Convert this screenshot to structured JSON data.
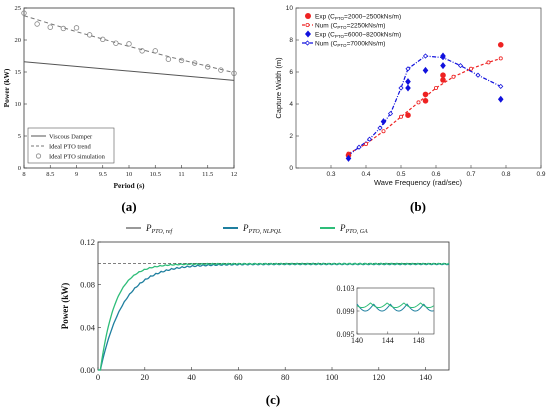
{
  "chart_data": [
    {
      "id": "a",
      "type": "line",
      "caption": "(a)",
      "xlabel": "Period (s)",
      "ylabel": "Power (kW)",
      "xlim": [
        8,
        12
      ],
      "ylim": [
        0,
        25
      ],
      "xticks": [
        "8",
        "8.5",
        "9",
        "9.5",
        "10",
        "10.5",
        "11",
        "11.5",
        "12"
      ],
      "yticks": [
        "0",
        "5",
        "10",
        "15",
        "20",
        "25"
      ],
      "legend_position": "bottom-left",
      "series": [
        {
          "name": "Viscous Damper",
          "style": "solid",
          "color": "#555555",
          "x": [
            8,
            12
          ],
          "y": [
            16.6,
            13.7
          ]
        },
        {
          "name": "Ideal PTO trend",
          "style": "dashed",
          "color": "#777777",
          "x": [
            8,
            9,
            10,
            11,
            12
          ],
          "y": [
            23.8,
            21.3,
            19.0,
            16.9,
            14.9
          ]
        },
        {
          "name": "Ideal PTO simulation",
          "style": "circle",
          "color": "#888888",
          "x": [
            8,
            8.25,
            8.5,
            8.75,
            9,
            9.25,
            9.5,
            9.75,
            10,
            10.25,
            10.5,
            10.75,
            11,
            11.25,
            11.5,
            11.75,
            12
          ],
          "y": [
            24.2,
            22.5,
            22.0,
            21.8,
            21.9,
            20.8,
            20.1,
            19.5,
            19.4,
            18.3,
            18.3,
            17.0,
            16.8,
            16.4,
            15.8,
            15.3,
            14.8
          ]
        }
      ]
    },
    {
      "id": "b",
      "type": "scatter",
      "caption": "(b)",
      "xlabel": "Wave Frequency (rad/sec)",
      "ylabel": "Capture Width (m)",
      "xlim": [
        0.2,
        0.9
      ],
      "ylim": [
        0,
        10
      ],
      "xticks": [
        "0.3",
        "0.4",
        "0.5",
        "0.6",
        "0.7",
        "0.8",
        "0.9"
      ],
      "yticks": [
        "0",
        "2",
        "4",
        "6",
        "8",
        "10"
      ],
      "legend_position": "top-left",
      "legend": {
        "exp1_sub": "PTO",
        "exp1_pre": "Exp (C",
        "exp1_post": "=2000~2500kNs/m)",
        "num1_pre": "Num (C",
        "num1_post": "=2250kNs/m)",
        "exp2_pre": "Exp (C",
        "exp2_post": "=6000~8200kNs/m)",
        "num2_pre": "Num (C",
        "num2_post": "=7000kNs/m)"
      },
      "series": [
        {
          "name": "exp1",
          "style": "circle",
          "color": "#ee2222",
          "x": [
            0.35,
            0.52,
            0.57,
            0.62,
            0.785,
            0.57,
            0.62
          ],
          "y": [
            0.8,
            3.3,
            4.6,
            5.8,
            7.7,
            4.2,
            5.5
          ]
        },
        {
          "name": "num1",
          "style": "dashed",
          "color": "#ee2222",
          "x": [
            0.35,
            0.4,
            0.45,
            0.5,
            0.55,
            0.6,
            0.65,
            0.7,
            0.75,
            0.785
          ],
          "y": [
            0.9,
            1.5,
            2.3,
            3.2,
            4.1,
            5.0,
            5.7,
            6.2,
            6.6,
            6.85
          ]
        },
        {
          "name": "exp2",
          "style": "diamond",
          "color": "#1111dd",
          "x": [
            0.35,
            0.45,
            0.52,
            0.52,
            0.57,
            0.62,
            0.62,
            0.785
          ],
          "y": [
            0.6,
            2.9,
            5.4,
            5.0,
            6.1,
            7.0,
            6.4,
            4.3
          ]
        },
        {
          "name": "num2",
          "style": "dashdot",
          "color": "#1111dd",
          "x": [
            0.35,
            0.38,
            0.41,
            0.44,
            0.47,
            0.5,
            0.52,
            0.57,
            0.62,
            0.67,
            0.72,
            0.785
          ],
          "y": [
            0.8,
            1.3,
            1.8,
            2.5,
            3.4,
            5.0,
            6.2,
            7.0,
            6.9,
            6.4,
            5.8,
            5.1
          ]
        }
      ]
    },
    {
      "id": "c",
      "type": "line",
      "caption": "(c)",
      "xlabel": "",
      "ylabel": "Power (kW)",
      "xlim": [
        0,
        150
      ],
      "ylim": [
        0,
        0.12
      ],
      "xticks": [
        "0",
        "20",
        "40",
        "60",
        "80",
        "100",
        "120",
        "140"
      ],
      "yticks": [
        "0.00",
        "0.04",
        "0.08",
        "0.12"
      ],
      "reference_level": 0.1,
      "legend_position": "top",
      "legend": {
        "ref_main": "P",
        "ref_sub": "PTO, ref",
        "nlpql_main": "P",
        "nlpql_sub": "PTO, NLPQL",
        "ga_main": "P",
        "ga_sub": "PTO, GA"
      },
      "series": [
        {
          "name": "ref",
          "color": "#999999",
          "style": "solid"
        },
        {
          "name": "nlpql",
          "color": "#1f7f9f",
          "style": "solid",
          "tau": 10
        },
        {
          "name": "ga",
          "color": "#2ebd79",
          "style": "solid",
          "tau": 6.5
        }
      ],
      "inset": {
        "xlim": [
          140,
          150
        ],
        "ylim": [
          0.095,
          0.103
        ],
        "xticks": [
          "140",
          "144",
          "148"
        ],
        "yticks": [
          "0.095",
          "0.099",
          "0.103"
        ]
      }
    }
  ]
}
